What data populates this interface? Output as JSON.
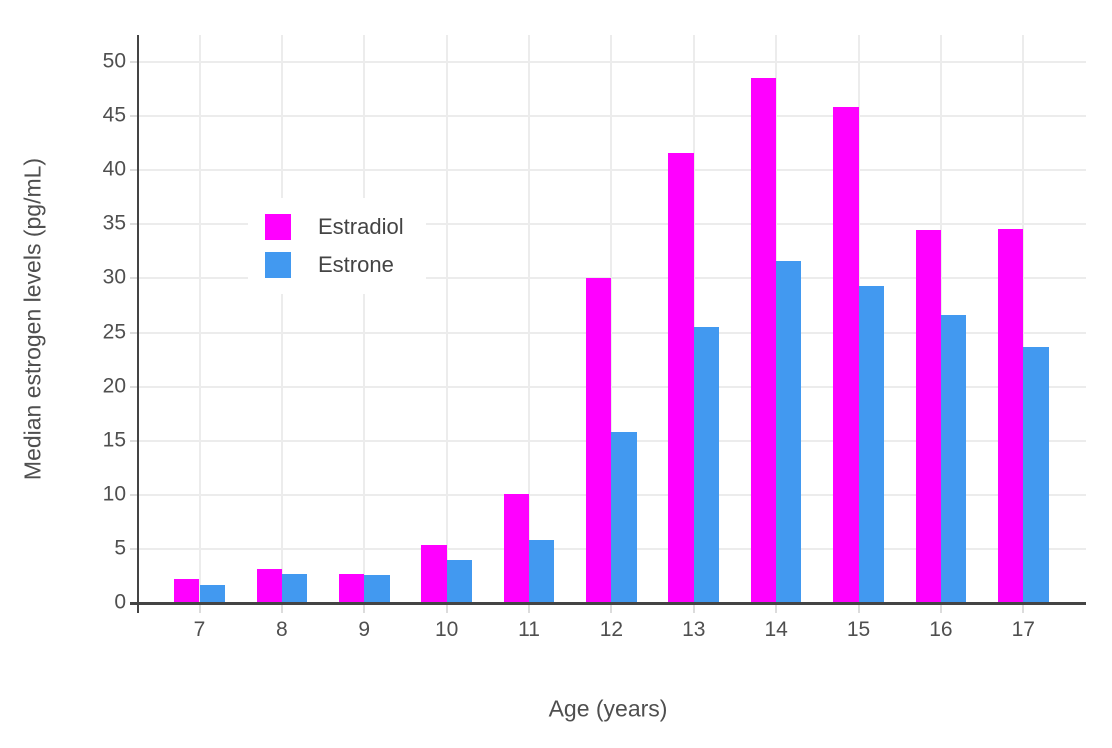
{
  "chart_data": {
    "type": "bar",
    "xlabel": "Age (years)",
    "ylabel": "Median estrogen levels (pg/mL)",
    "categories": [
      7,
      8,
      9,
      10,
      11,
      12,
      13,
      14,
      15,
      16,
      17
    ],
    "series": [
      {
        "name": "Estradiol",
        "color": "#FF00FF",
        "values": [
          2.2,
          3.1,
          2.7,
          5.4,
          10.1,
          30.0,
          41.6,
          48.5,
          45.8,
          34.5,
          34.6
        ]
      },
      {
        "name": "Estrone",
        "color": "#4299F0",
        "values": [
          1.7,
          2.7,
          2.6,
          4.0,
          5.8,
          15.8,
          25.5,
          31.6,
          29.3,
          26.6,
          23.7
        ]
      }
    ],
    "ylim": [
      0,
      52.5
    ],
    "yticks": [
      0,
      5,
      10,
      15,
      20,
      25,
      30,
      35,
      40,
      45,
      50
    ],
    "grid": {
      "horizontal": true,
      "vertical": true,
      "color": "#ECECEC"
    },
    "tick_color": "#DCDCDC",
    "axis_color": "#444444",
    "tick_label_color": "#4f4f4f",
    "legend": {
      "position": "inside-top-left"
    }
  }
}
